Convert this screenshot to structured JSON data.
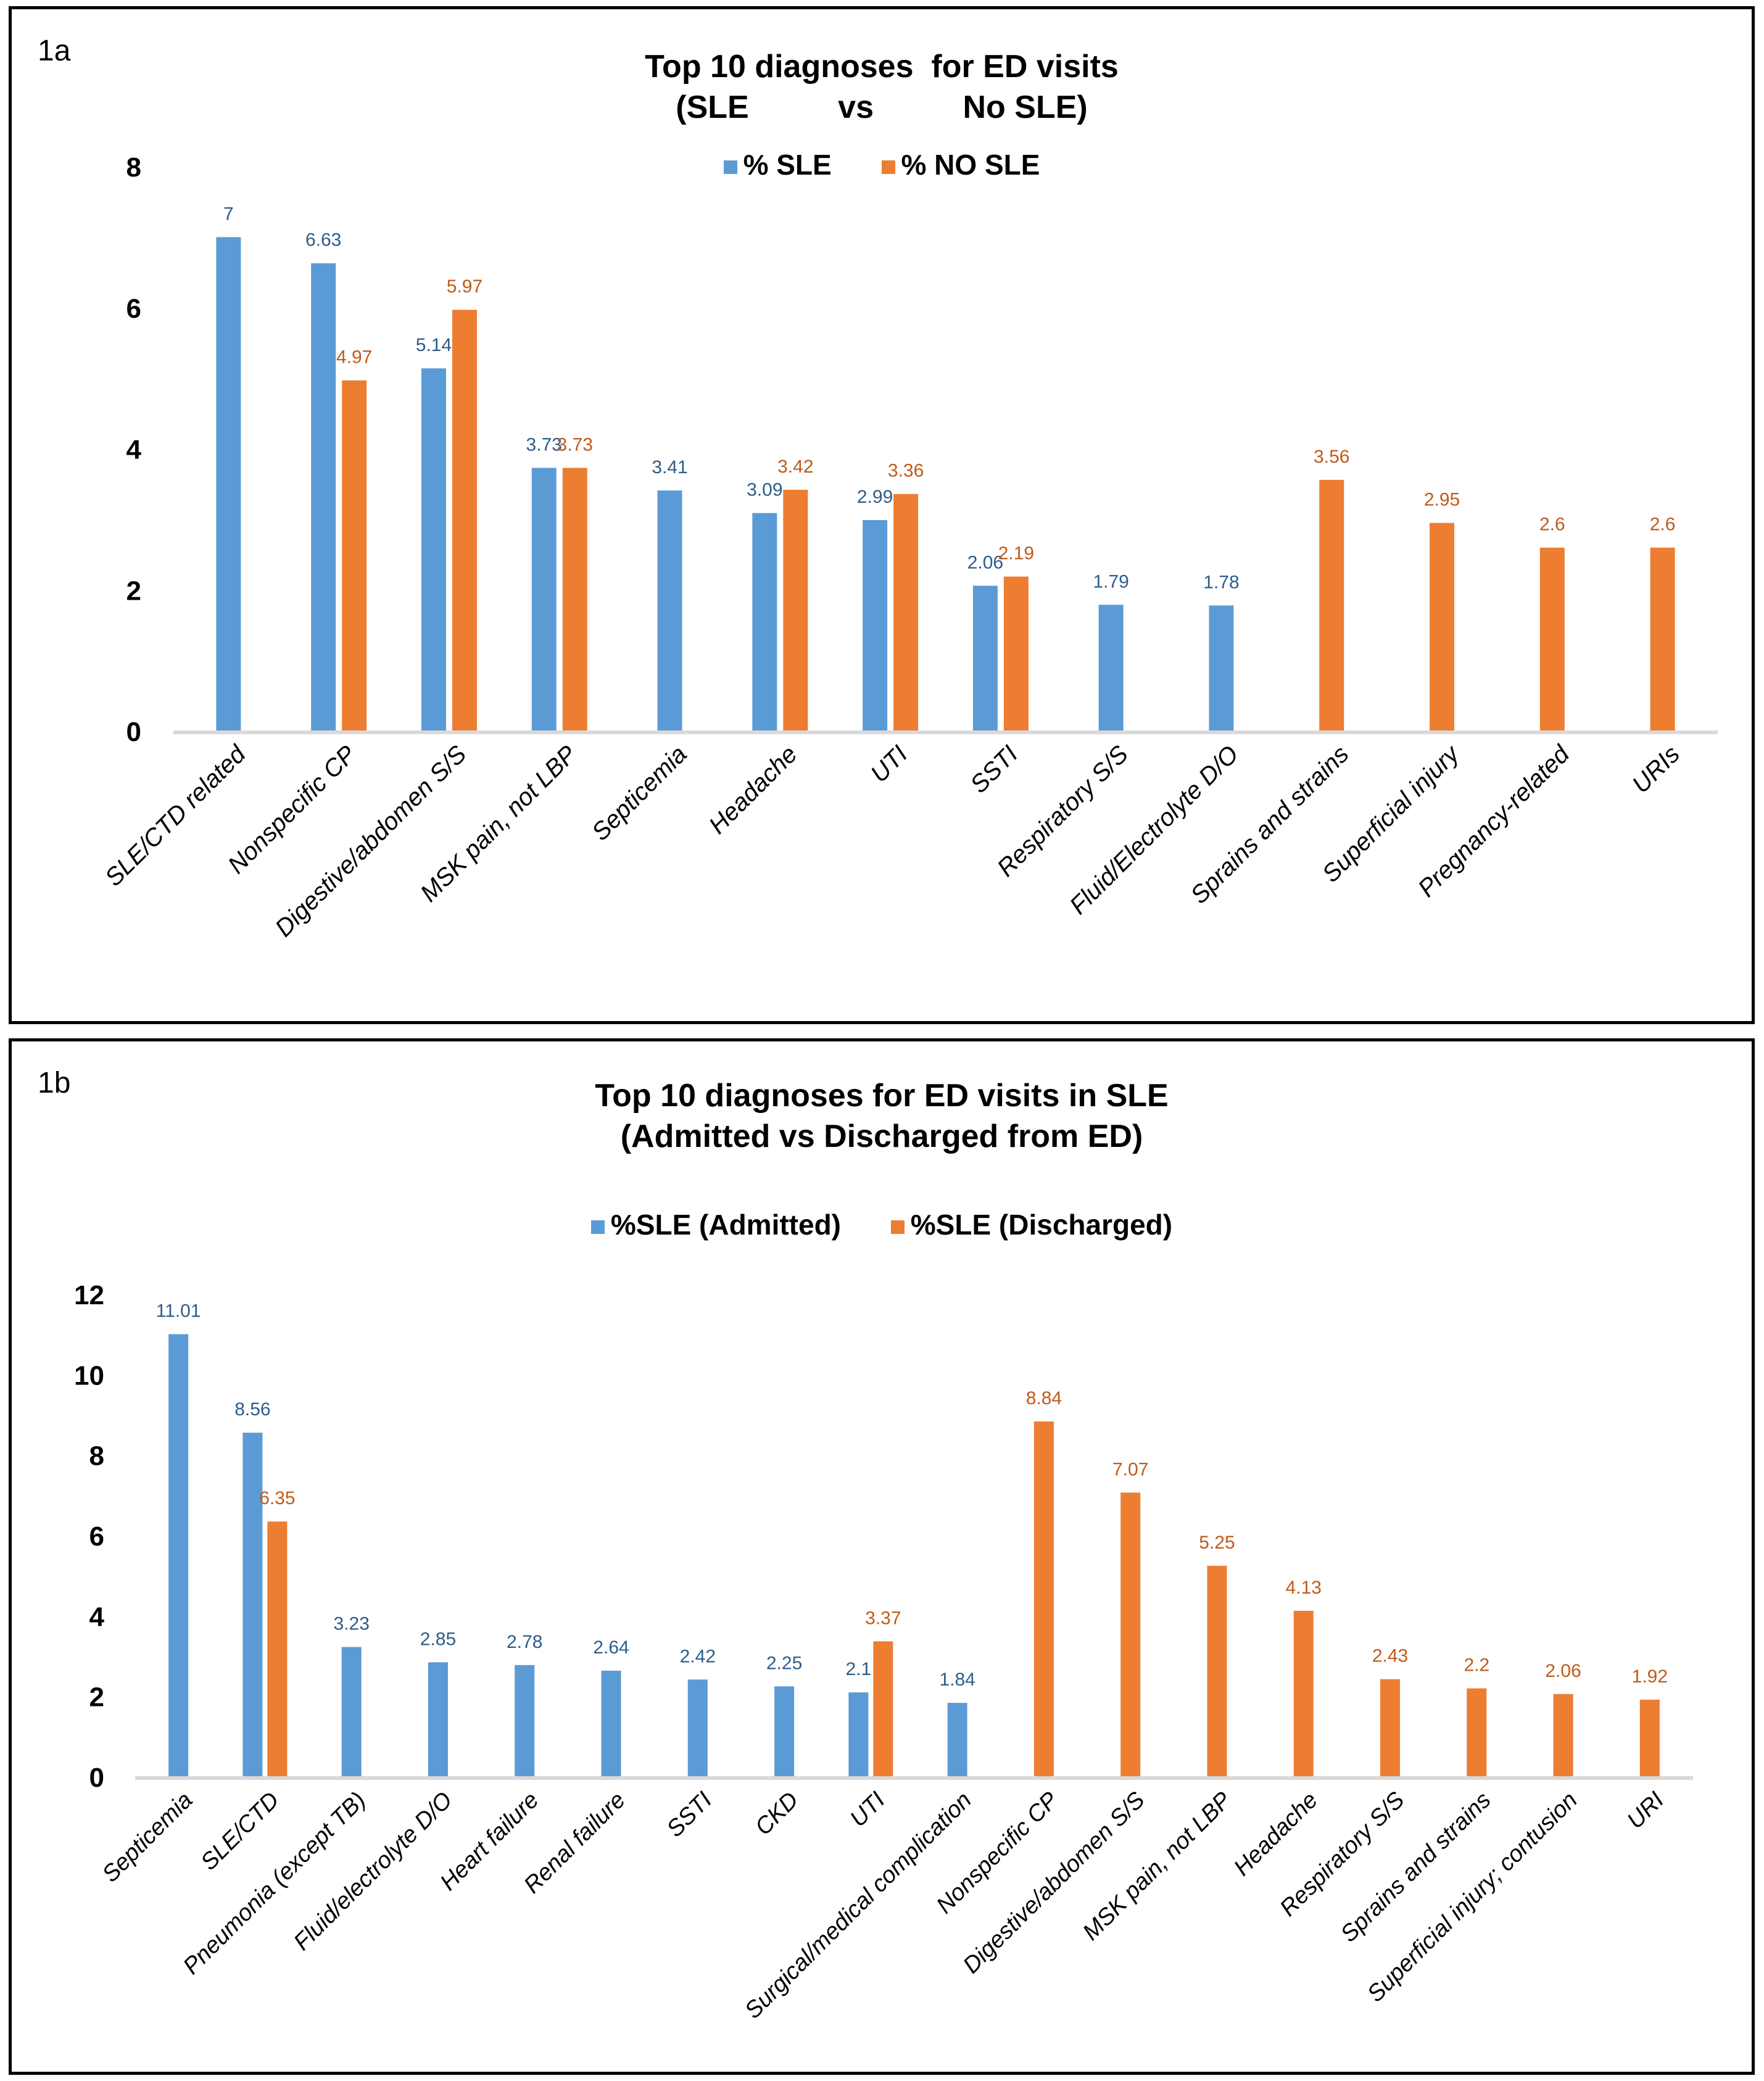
{
  "colors": {
    "series1": "#5b9bd5",
    "series2": "#ed7d31",
    "label1": "#2e5c8a",
    "label2": "#c05a1a",
    "axis": "#d9d9d9"
  },
  "chart_data": [
    {
      "id": "1a",
      "panel_label": "1a",
      "type": "bar",
      "title": "Top 10 diagnoses  for ED visits\n(SLE          vs          No SLE)",
      "xlabel": "",
      "ylabel": "",
      "ylim": [
        0,
        8
      ],
      "yticks": [
        "0",
        "2",
        "4",
        "6",
        "8"
      ],
      "grid": false,
      "legend_position": "top-center",
      "categories": [
        "SLE/CTD related",
        "Nonspecific CP",
        "Digestive/abdomen S/S",
        "MSK pain, not LBP",
        "Septicemia",
        "Headache",
        "UTI",
        "SSTI",
        "Respiratory S/S",
        "Fluid/Electrolyte D/O",
        "Sprains and strains",
        "Superficial injury",
        "Pregnancy-related",
        "URIs"
      ],
      "series": [
        {
          "name": "%  SLE",
          "values": [
            7,
            6.63,
            5.14,
            3.73,
            3.41,
            3.09,
            2.99,
            2.06,
            1.79,
            1.78,
            null,
            null,
            null,
            null
          ],
          "labels": [
            "7",
            "6.63",
            "5.14",
            "3.73",
            "3.41",
            "3.09",
            "2.99",
            "2.06",
            "1.79",
            "1.78",
            null,
            null,
            null,
            null
          ]
        },
        {
          "name": "% NO SLE",
          "values": [
            null,
            4.97,
            5.97,
            3.73,
            null,
            3.42,
            3.36,
            2.19,
            null,
            null,
            3.56,
            2.95,
            2.6,
            2.6
          ],
          "labels": [
            null,
            "4.97",
            "5.97",
            "3.73",
            null,
            "3.42",
            "3.36",
            "2.19",
            null,
            null,
            "3.56",
            "2.95",
            "2.6",
            "2.6"
          ]
        }
      ]
    },
    {
      "id": "1b",
      "panel_label": "1b",
      "type": "bar",
      "title": "Top 10 diagnoses for ED visits in SLE\n(Admitted vs Discharged from ED)",
      "xlabel": "",
      "ylabel": "",
      "ylim": [
        0,
        12
      ],
      "yticks": [
        "0",
        "2",
        "4",
        "6",
        "8",
        "10",
        "12"
      ],
      "grid": false,
      "legend_position": "top-center",
      "categories": [
        "Septicemia",
        "SLE/CTD",
        "Pneumonia (except TB)",
        "Fluid/electrolyte D/O",
        "Heart failure",
        "Renal failure",
        "SSTI",
        "CKD",
        "UTI",
        "Surgical/medical complication",
        "Nonspecific CP",
        "Digestive/abdomen S/S",
        "MSK pain, not LBP",
        "Headache",
        "Respiratory S/S",
        "Sprains and strains",
        "Superficial injury; contusion",
        "URI"
      ],
      "series": [
        {
          "name": "%SLE (Admitted)",
          "values": [
            11.01,
            8.56,
            3.23,
            2.85,
            2.78,
            2.64,
            2.42,
            2.25,
            2.1,
            1.84,
            null,
            null,
            null,
            null,
            null,
            null,
            null,
            null
          ],
          "labels": [
            "11.01",
            "8.56",
            "3.23",
            "2.85",
            "2.78",
            "2.64",
            "2.42",
            "2.25",
            "2.1",
            "1.84",
            null,
            null,
            null,
            null,
            null,
            null,
            null,
            null
          ]
        },
        {
          "name": "%SLE (Discharged)",
          "values": [
            null,
            6.35,
            null,
            null,
            null,
            null,
            null,
            null,
            3.37,
            null,
            8.84,
            7.07,
            5.25,
            4.13,
            2.43,
            2.2,
            2.06,
            1.92
          ],
          "labels": [
            null,
            "6.35",
            null,
            null,
            null,
            null,
            null,
            null,
            "3.37",
            null,
            "8.84",
            "7.07",
            "5.25",
            "4.13",
            "2.43",
            "2.2",
            "2.06",
            "1.92"
          ]
        }
      ]
    }
  ]
}
